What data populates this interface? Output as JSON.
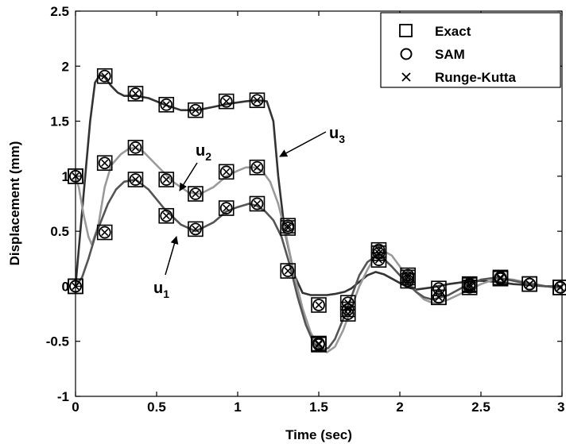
{
  "chart_data": {
    "type": "line",
    "title": "",
    "xlabel": "Time (sec)",
    "ylabel": "Displacement (mm)",
    "xlim": [
      0,
      3
    ],
    "ylim": [
      -1,
      2.5
    ],
    "xticks": [
      "0",
      "0.5",
      "1",
      "1.5",
      "2",
      "2.5",
      "3"
    ],
    "yticks": [
      "-1",
      "-0.5",
      "0",
      "0.5",
      "1",
      "1.5",
      "2",
      "2.5"
    ],
    "grid": false,
    "legend_position": "top-right",
    "legend": [
      {
        "label": "Exact",
        "marker": "square"
      },
      {
        "label": "SAM",
        "marker": "circle"
      },
      {
        "label": "Runge-Kutta",
        "marker": "x"
      }
    ],
    "series": [
      {
        "label": "u3",
        "color": "#333333",
        "x": [
          0,
          0.03,
          0.06,
          0.09,
          0.12,
          0.15,
          0.18,
          0.22,
          0.26,
          0.3,
          0.37,
          0.45,
          0.55,
          0.65,
          0.75,
          0.85,
          0.95,
          1.05,
          1.12,
          1.18,
          1.22,
          1.25,
          1.29,
          1.35,
          1.4,
          1.45,
          1.5,
          1.55,
          1.6,
          1.66,
          1.7,
          1.75,
          1.8,
          1.85,
          1.9,
          1.95,
          2.0,
          2.05,
          2.1,
          2.2,
          2.3,
          2.4,
          2.5,
          2.6,
          2.65,
          2.7,
          2.8,
          2.9,
          3.0
        ],
        "y": [
          0.0,
          0.5,
          1.0,
          1.5,
          1.85,
          1.92,
          1.9,
          1.82,
          1.76,
          1.73,
          1.73,
          1.71,
          1.65,
          1.6,
          1.6,
          1.63,
          1.66,
          1.68,
          1.69,
          1.68,
          1.5,
          1.0,
          0.5,
          0.1,
          -0.06,
          -0.08,
          -0.08,
          -0.08,
          -0.07,
          -0.05,
          -0.02,
          0.04,
          0.1,
          0.13,
          0.11,
          0.07,
          0.03,
          -0.01,
          -0.03,
          -0.01,
          0.02,
          0.04,
          0.05,
          0.04,
          0.03,
          0.02,
          0.01,
          0.0,
          0.0
        ],
        "marker_x": [
          0.18,
          0.37,
          0.56,
          0.74,
          0.93,
          1.12,
          1.31,
          1.5,
          1.68,
          1.87,
          2.05,
          2.24,
          2.43,
          2.62,
          2.8,
          2.99
        ],
        "marker_y": [
          1.91,
          1.75,
          1.65,
          1.6,
          1.68,
          1.69,
          0.14,
          -0.17,
          -0.15,
          0.3,
          0.1,
          -0.02,
          -0.01,
          0.08,
          0.02,
          -0.01
        ]
      },
      {
        "label": "u2",
        "color": "#9a9a9a",
        "x": [
          0,
          0.02,
          0.05,
          0.08,
          0.1,
          0.14,
          0.18,
          0.22,
          0.28,
          0.33,
          0.37,
          0.42,
          0.5,
          0.6,
          0.7,
          0.77,
          0.85,
          0.93,
          1.0,
          1.05,
          1.1,
          1.15,
          1.2,
          1.25,
          1.3,
          1.35,
          1.4,
          1.45,
          1.5,
          1.55,
          1.6,
          1.65,
          1.7,
          1.75,
          1.8,
          1.85,
          1.9,
          1.95,
          2.0,
          2.05,
          2.1,
          2.15,
          2.2,
          2.25,
          2.3,
          2.4,
          2.5,
          2.6,
          2.7,
          2.8,
          2.9,
          3.0
        ],
        "y": [
          1.0,
          0.9,
          0.65,
          0.45,
          0.38,
          0.55,
          0.9,
          1.1,
          1.2,
          1.25,
          1.26,
          1.22,
          1.1,
          0.95,
          0.85,
          0.84,
          0.9,
          1.0,
          1.05,
          1.08,
          1.08,
          1.05,
          0.95,
          0.75,
          0.45,
          0.1,
          -0.2,
          -0.42,
          -0.55,
          -0.6,
          -0.55,
          -0.4,
          -0.2,
          0.0,
          0.15,
          0.28,
          0.32,
          0.28,
          0.18,
          0.06,
          -0.05,
          -0.12,
          -0.15,
          -0.15,
          -0.12,
          -0.05,
          0.02,
          0.07,
          0.06,
          0.03,
          0.0,
          -0.02
        ],
        "marker_x": [
          0.0,
          0.18,
          0.37,
          0.56,
          0.74,
          0.93,
          1.12,
          1.31,
          1.5,
          1.68,
          1.87,
          2.05,
          2.24,
          2.43,
          2.62,
          2.8,
          2.99
        ],
        "marker_y": [
          1.0,
          1.12,
          1.26,
          0.97,
          0.84,
          1.04,
          1.08,
          0.53,
          -0.52,
          -0.21,
          0.33,
          0.05,
          -0.1,
          0.01,
          0.07,
          0.02,
          -0.01
        ]
      },
      {
        "label": "u1",
        "color": "#555555",
        "x": [
          0,
          0.04,
          0.08,
          0.12,
          0.16,
          0.2,
          0.25,
          0.3,
          0.37,
          0.45,
          0.55,
          0.65,
          0.74,
          0.85,
          0.93,
          1.0,
          1.07,
          1.12,
          1.17,
          1.22,
          1.27,
          1.32,
          1.37,
          1.42,
          1.47,
          1.52,
          1.56,
          1.6,
          1.65,
          1.7,
          1.75,
          1.8,
          1.85,
          1.9,
          1.95,
          2.0,
          2.05,
          2.1,
          2.15,
          2.2,
          2.3,
          2.4,
          2.5,
          2.6,
          2.7,
          2.8,
          2.9,
          3.0
        ],
        "y": [
          0.0,
          0.08,
          0.25,
          0.45,
          0.6,
          0.75,
          0.88,
          0.95,
          0.97,
          0.88,
          0.7,
          0.56,
          0.5,
          0.58,
          0.68,
          0.72,
          0.75,
          0.73,
          0.68,
          0.6,
          0.45,
          0.2,
          -0.1,
          -0.35,
          -0.52,
          -0.58,
          -0.56,
          -0.48,
          -0.3,
          -0.1,
          0.1,
          0.22,
          0.27,
          0.25,
          0.18,
          0.1,
          0.02,
          -0.05,
          -0.1,
          -0.12,
          -0.08,
          0.0,
          0.06,
          0.08,
          0.05,
          0.02,
          0.0,
          -0.01
        ],
        "marker_x": [
          0.0,
          0.18,
          0.37,
          0.56,
          0.74,
          0.93,
          1.12,
          1.31,
          1.5,
          1.68,
          1.87,
          2.05,
          2.24,
          2.43,
          2.62,
          2.8,
          2.99
        ],
        "marker_y": [
          0.0,
          0.49,
          0.97,
          0.64,
          0.52,
          0.71,
          0.75,
          0.55,
          -0.53,
          -0.25,
          0.24,
          0.08,
          -0.1,
          0.02,
          0.07,
          0.02,
          -0.01
        ]
      }
    ],
    "extra_markers": [
      {
        "x": 0.0,
        "y": 1.0
      },
      {
        "x": 0.0,
        "y": 0.0
      }
    ],
    "annotations": [
      {
        "main": "u",
        "sub": "3",
        "target_series": "u3"
      },
      {
        "main": "u",
        "sub": "2",
        "target_series": "u2"
      },
      {
        "main": "u",
        "sub": "1",
        "target_series": "u1"
      }
    ]
  }
}
